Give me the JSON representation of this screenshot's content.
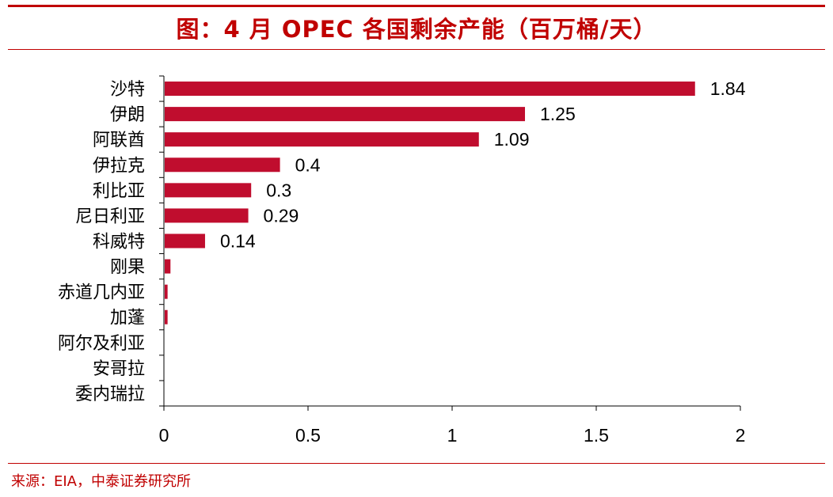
{
  "header": {
    "title": "图：4 月 OPEC 各国剩余产能（百万桶/天）"
  },
  "footer": {
    "source": "来源：EIA，中泰证券研究所"
  },
  "colors": {
    "accent": "#c00000",
    "bar": "#c00d2e"
  },
  "chart_data": {
    "type": "bar",
    "orientation": "horizontal",
    "title": "",
    "xlabel": "",
    "ylabel": "",
    "categories": [
      "沙特",
      "伊朗",
      "阿联酋",
      "伊拉克",
      "利比亚",
      "尼日利亚",
      "科威特",
      "刚果",
      "赤道几内亚",
      "加蓬",
      "阿尔及利亚",
      "安哥拉",
      "委内瑞拉"
    ],
    "values": [
      1.84,
      1.25,
      1.09,
      0.4,
      0.3,
      0.29,
      0.14,
      0.02,
      0.01,
      0.01,
      0,
      0,
      0
    ],
    "data_labels": [
      "1.84",
      "1.25",
      "1.09",
      "0.4",
      "0.3",
      "0.29",
      "0.14",
      "",
      "",
      "",
      "",
      "",
      ""
    ],
    "xlim": [
      0,
      2
    ],
    "xticks": [
      "0",
      "0.5",
      "1",
      "1.5",
      "2"
    ],
    "xtick_values": [
      0,
      0.5,
      1,
      1.5,
      2
    ],
    "grid": false,
    "legend": "none"
  }
}
